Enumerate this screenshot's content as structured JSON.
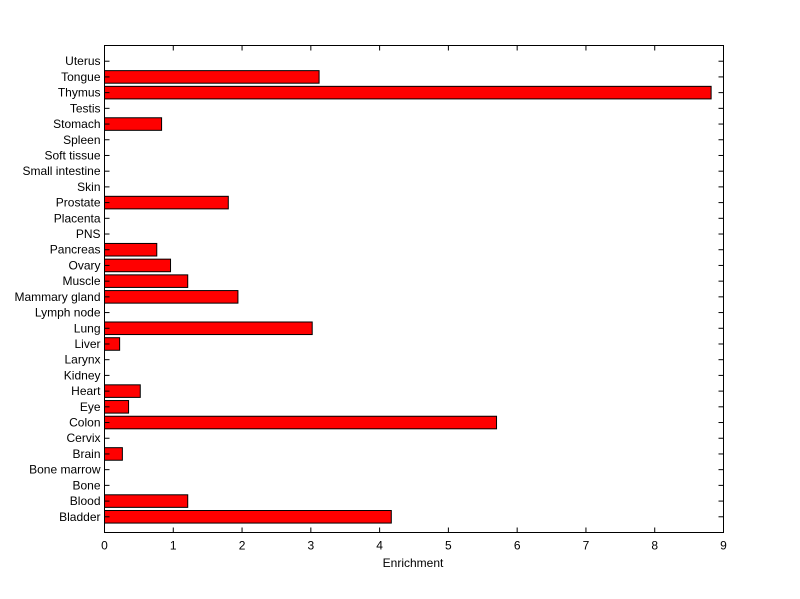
{
  "chart_data": {
    "type": "bar",
    "orientation": "horizontal",
    "categories": [
      "Uterus",
      "Tongue",
      "Thymus",
      "Testis",
      "Stomach",
      "Spleen",
      "Soft tissue",
      "Small intestine",
      "Skin",
      "Prostate",
      "Placenta",
      "PNS",
      "Pancreas",
      "Ovary",
      "Muscle",
      "Mammary gland",
      "Lymph node",
      "Lung",
      "Liver",
      "Larynx",
      "Kidney",
      "Heart",
      "Eye",
      "Colon",
      "Cervix",
      "Brain",
      "Bone marrow",
      "Bone",
      "Blood",
      "Bladder"
    ],
    "values": [
      0,
      3.12,
      8.82,
      0,
      0.83,
      0,
      0,
      0,
      0,
      1.8,
      0,
      0,
      0.76,
      0.96,
      1.21,
      1.94,
      0,
      3.02,
      0.22,
      0,
      0,
      0.52,
      0.35,
      5.7,
      0,
      0.26,
      0,
      0,
      1.21,
      4.17
    ],
    "xlabel": "Enrichment",
    "xlim": [
      0,
      9
    ],
    "xticks": [
      "0",
      "1",
      "2",
      "3",
      "4",
      "5",
      "6",
      "7",
      "8",
      "9"
    ],
    "grid": false,
    "bar_color": "#ff0000"
  }
}
